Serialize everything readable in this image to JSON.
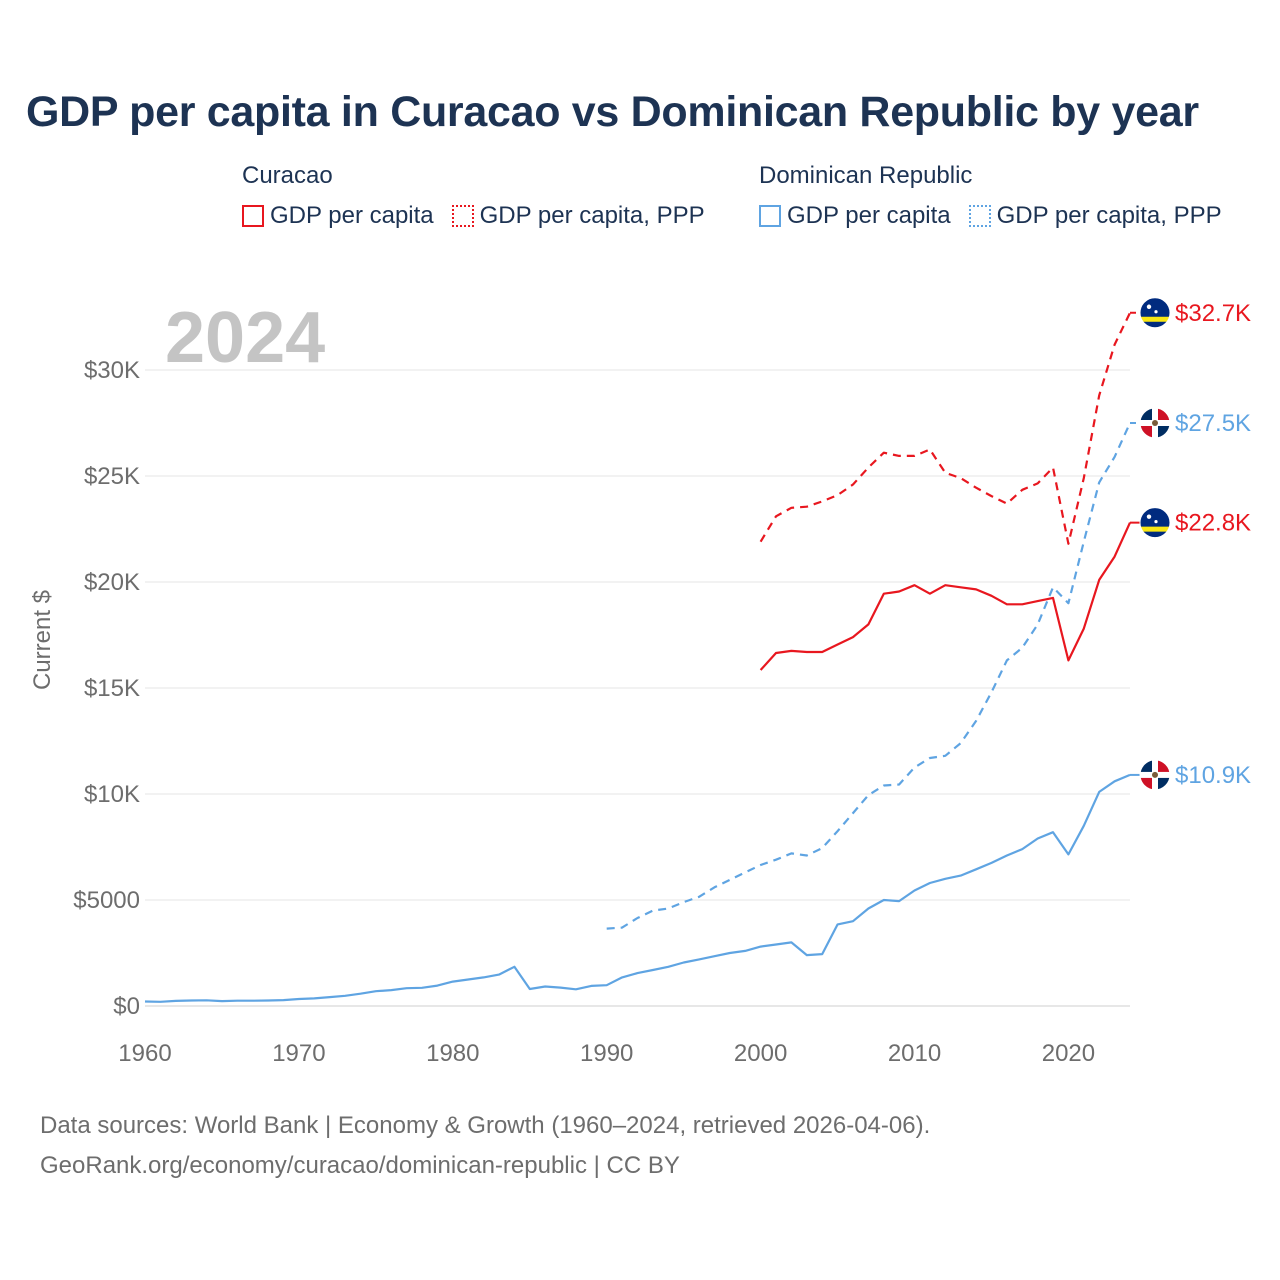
{
  "title": "GDP per capita in Curacao vs Dominican Republic by year",
  "legend": {
    "groups": [
      {
        "name": "Curacao",
        "items": [
          "GDP per capita",
          "GDP per capita, PPP"
        ],
        "color": "#e8171f"
      },
      {
        "name": "Dominican Republic",
        "items": [
          "GDP per capita",
          "GDP per capita, PPP"
        ],
        "color": "#5fa4e2"
      }
    ]
  },
  "year_label": "2024",
  "footer": {
    "line1": "Data sources: World Bank | Economy & Growth (1960–2024, retrieved 2026-04-06).",
    "line2": "GeoRank.org/economy/curacao/dominican-republic | CC BY"
  },
  "colors": {
    "curacao": "#e8171f",
    "dominican": "#5fa4e2",
    "grid": "#e6e6e6",
    "axis_text": "#6d6d6d",
    "title": "#1d3353"
  },
  "chart_data": {
    "type": "line",
    "title": "GDP per capita in Curacao vs Dominican Republic by year",
    "xlabel": "",
    "ylabel": "Current $",
    "xlim": [
      1960,
      2024
    ],
    "ylim": [
      0,
      32700
    ],
    "x_ticks": [
      1960,
      1970,
      1980,
      1990,
      2000,
      2010,
      2020
    ],
    "x_tick_labels": [
      "1960",
      "1970",
      "1980",
      "1990",
      "2000",
      "2010",
      "2020"
    ],
    "y_ticks": [
      0,
      5000,
      10000,
      15000,
      20000,
      25000,
      30000
    ],
    "y_tick_labels": [
      "$0",
      "$5000",
      "$10K",
      "$15K",
      "$20K",
      "$25K",
      "$30K"
    ],
    "series": [
      {
        "name": "Curacao GDP per capita, PPP",
        "country": "Curacao",
        "color": "#e8171f",
        "dashed": true,
        "end_label": "$32.7K",
        "flag": "curacao-flag",
        "x": [
          2000,
          2001,
          2002,
          2003,
          2004,
          2005,
          2006,
          2007,
          2008,
          2009,
          2010,
          2011,
          2012,
          2013,
          2014,
          2015,
          2016,
          2017,
          2018,
          2019,
          2020,
          2021,
          2022,
          2023,
          2024
        ],
        "values": [
          21900,
          23100,
          23500,
          23550,
          23800,
          24100,
          24600,
          25400,
          26100,
          25950,
          25950,
          26250,
          25150,
          24900,
          24450,
          24050,
          23700,
          24350,
          24650,
          25400,
          21800,
          24900,
          28800,
          31200,
          32700
        ]
      },
      {
        "name": "Dominican Republic GDP per capita, PPP",
        "country": "Dominican Republic",
        "color": "#5fa4e2",
        "dashed": true,
        "end_label": "$27.5K",
        "flag": "dominican-republic-flag",
        "x": [
          1990,
          1991,
          1992,
          1993,
          1994,
          1995,
          1996,
          1997,
          1998,
          1999,
          2000,
          2001,
          2002,
          2003,
          2004,
          2005,
          2006,
          2007,
          2008,
          2009,
          2010,
          2011,
          2012,
          2013,
          2014,
          2015,
          2016,
          2017,
          2018,
          2019,
          2020,
          2021,
          2022,
          2023,
          2024
        ],
        "values": [
          3650,
          3700,
          4150,
          4500,
          4600,
          4900,
          5150,
          5600,
          5950,
          6300,
          6650,
          6900,
          7200,
          7100,
          7450,
          8250,
          9100,
          9950,
          10400,
          10450,
          11250,
          11700,
          11800,
          12400,
          13450,
          14800,
          16300,
          16900,
          18000,
          19750,
          19000,
          21900,
          24700,
          25900,
          27500
        ]
      },
      {
        "name": "Curacao GDP per capita",
        "country": "Curacao",
        "color": "#e8171f",
        "dashed": false,
        "end_label": "$22.8K",
        "flag": "curacao-flag",
        "x": [
          2000,
          2001,
          2002,
          2003,
          2004,
          2005,
          2006,
          2007,
          2008,
          2009,
          2010,
          2011,
          2012,
          2013,
          2014,
          2015,
          2016,
          2017,
          2018,
          2019,
          2020,
          2021,
          2022,
          2023,
          2024
        ],
        "values": [
          15850,
          16650,
          16750,
          16700,
          16700,
          17050,
          17400,
          18000,
          19450,
          19550,
          19850,
          19450,
          19850,
          19750,
          19650,
          19350,
          18950,
          18950,
          19100,
          19250,
          16300,
          17800,
          20100,
          21200,
          22800
        ]
      },
      {
        "name": "Dominican Republic GDP per capita",
        "country": "Dominican Republic",
        "color": "#5fa4e2",
        "dashed": false,
        "end_label": "$10.9K",
        "flag": "dominican-republic-flag",
        "x": [
          1960,
          1961,
          1962,
          1963,
          1964,
          1965,
          1966,
          1967,
          1968,
          1969,
          1970,
          1971,
          1972,
          1973,
          1974,
          1975,
          1976,
          1977,
          1978,
          1979,
          1980,
          1981,
          1982,
          1983,
          1984,
          1985,
          1986,
          1987,
          1988,
          1989,
          1990,
          1991,
          1992,
          1993,
          1994,
          1995,
          1996,
          1997,
          1998,
          1999,
          2000,
          2001,
          2002,
          2003,
          2004,
          2005,
          2006,
          2007,
          2008,
          2009,
          2010,
          2011,
          2012,
          2013,
          2014,
          2015,
          2016,
          2017,
          2018,
          2019,
          2020,
          2021,
          2022,
          2023,
          2024
        ],
        "values": [
          210,
          200,
          240,
          260,
          270,
          230,
          250,
          250,
          260,
          280,
          330,
          360,
          420,
          480,
          580,
          700,
          750,
          840,
          860,
          960,
          1150,
          1250,
          1350,
          1480,
          1850,
          800,
          920,
          870,
          790,
          950,
          980,
          1350,
          1550,
          1700,
          1850,
          2050,
          2200,
          2350,
          2500,
          2600,
          2800,
          2900,
          3000,
          2400,
          2450,
          3850,
          4000,
          4600,
          5000,
          4950,
          5450,
          5800,
          6000,
          6150,
          6450,
          6750,
          7100,
          7400,
          7900,
          8200,
          7150,
          8500,
          10100,
          10600,
          10900
        ]
      }
    ]
  }
}
